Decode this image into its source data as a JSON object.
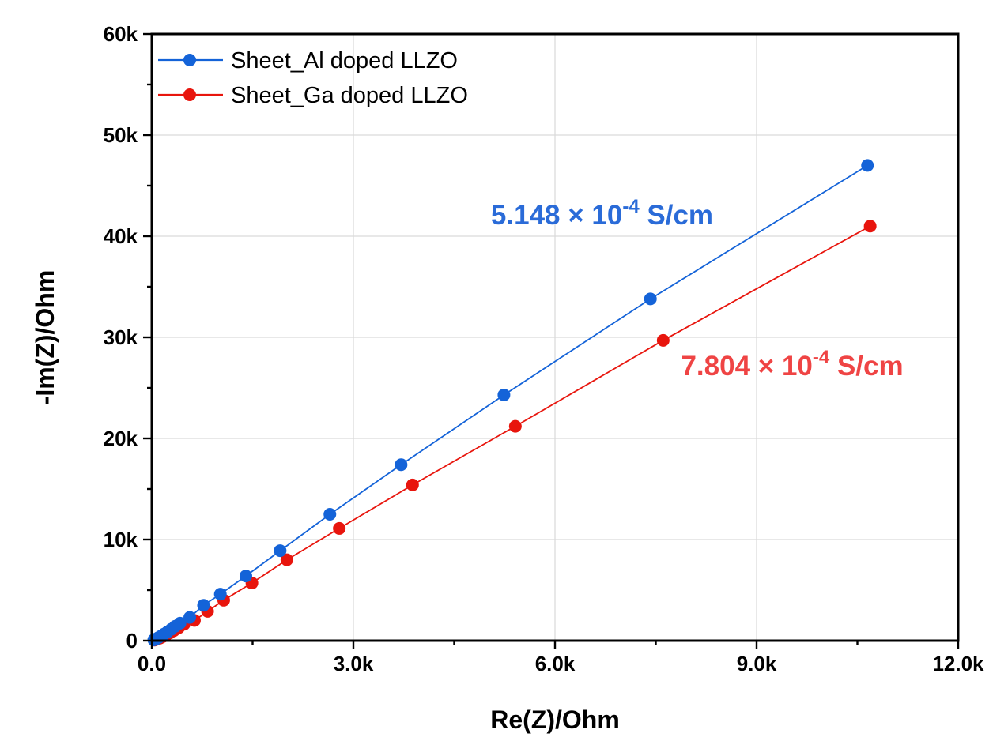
{
  "figure": {
    "background": "#ffffff"
  },
  "chart_data": {
    "type": "line",
    "title": "",
    "xlabel": "Re(Z)/Ohm",
    "ylabel": "-Im(Z)/Ohm",
    "xlim": [
      0,
      12000
    ],
    "ylim": [
      0,
      60000
    ],
    "grid": true,
    "grid_color": "#d9d9d9",
    "axis_color": "#000000",
    "legend_position": "top-left",
    "x_ticks": [
      {
        "value": 0,
        "label": "0.0"
      },
      {
        "value": 3000,
        "label": "3.0k"
      },
      {
        "value": 6000,
        "label": "6.0k"
      },
      {
        "value": 9000,
        "label": "9.0k"
      },
      {
        "value": 12000,
        "label": "12.0k"
      }
    ],
    "x_minor_ticks": [
      1500,
      4500,
      7500,
      10500
    ],
    "y_ticks": [
      {
        "value": 0,
        "label": "0"
      },
      {
        "value": 10000,
        "label": "10k"
      },
      {
        "value": 20000,
        "label": "20k"
      },
      {
        "value": 30000,
        "label": "30k"
      },
      {
        "value": 40000,
        "label": "40k"
      },
      {
        "value": 50000,
        "label": "50k"
      },
      {
        "value": 60000,
        "label": "60k"
      }
    ],
    "y_minor_ticks": [
      5000,
      15000,
      25000,
      35000,
      45000,
      55000
    ],
    "series": [
      {
        "name": "Sheet_Ga doped LLZO",
        "color": "#e8150d",
        "marker": "circle",
        "points": [
          [
            40,
            60
          ],
          [
            80,
            150
          ],
          [
            120,
            260
          ],
          [
            165,
            400
          ],
          [
            215,
            570
          ],
          [
            270,
            770
          ],
          [
            330,
            1000
          ],
          [
            400,
            1280
          ],
          [
            480,
            1620
          ],
          [
            635,
            2000
          ],
          [
            830,
            2900
          ],
          [
            1070,
            4000
          ],
          [
            1490,
            5700
          ],
          [
            2010,
            8000
          ],
          [
            2790,
            11100
          ],
          [
            3880,
            15400
          ],
          [
            5410,
            21200
          ],
          [
            7610,
            29700
          ],
          [
            10690,
            41000
          ]
        ]
      },
      {
        "name": "Sheet_Al doped LLZO",
        "color": "#1463d8",
        "marker": "circle",
        "points": [
          [
            30,
            80
          ],
          [
            65,
            180
          ],
          [
            100,
            310
          ],
          [
            140,
            470
          ],
          [
            185,
            660
          ],
          [
            235,
            880
          ],
          [
            290,
            1130
          ],
          [
            350,
            1430
          ],
          [
            420,
            1730
          ],
          [
            565,
            2300
          ],
          [
            770,
            3500
          ],
          [
            1020,
            4600
          ],
          [
            1400,
            6400
          ],
          [
            1910,
            8900
          ],
          [
            2650,
            12500
          ],
          [
            3710,
            17400
          ],
          [
            5240,
            24300
          ],
          [
            7420,
            33800
          ],
          [
            10650,
            47000
          ]
        ]
      }
    ],
    "annotations": [
      {
        "text": "5.148 × 10⁻⁴ S/cm",
        "main": "5.148 × 10",
        "sup": "-4",
        "tail": " S/cm",
        "color": "#2a6bd8",
        "x": 6700,
        "y": 42100
      },
      {
        "text": "7.804 × 10⁻⁴ S/cm",
        "main": "7.804 × 10",
        "sup": "-4",
        "tail": " S/cm",
        "color": "#ef4444",
        "x": 9530,
        "y": 27200
      }
    ]
  }
}
